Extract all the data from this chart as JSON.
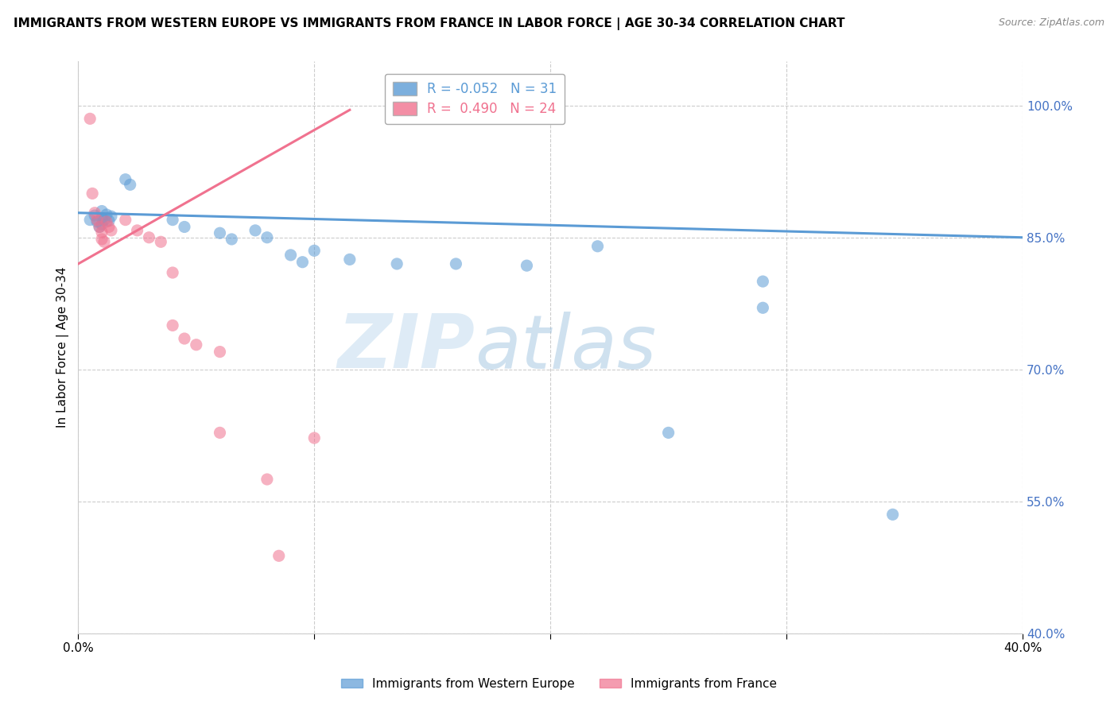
{
  "title": "IMMIGRANTS FROM WESTERN EUROPE VS IMMIGRANTS FROM FRANCE IN LABOR FORCE | AGE 30-34 CORRELATION CHART",
  "source": "Source: ZipAtlas.com",
  "ylabel": "In Labor Force | Age 30-34",
  "xlim": [
    0.0,
    0.4
  ],
  "ylim": [
    0.4,
    1.05
  ],
  "ytick_right_values": [
    1.0,
    0.85,
    0.7,
    0.55,
    0.4
  ],
  "xtick_values": [
    0.0,
    0.1,
    0.2,
    0.3,
    0.4
  ],
  "legend_labels": [
    "Immigrants from Western Europe",
    "Immigrants from France"
  ],
  "r_blue": -0.052,
  "n_blue": 31,
  "r_pink": 0.49,
  "n_pink": 24,
  "blue_color": "#5b9bd5",
  "pink_color": "#f0728f",
  "blue_scatter": [
    [
      0.005,
      0.87
    ],
    [
      0.007,
      0.875
    ],
    [
      0.008,
      0.868
    ],
    [
      0.009,
      0.862
    ],
    [
      0.01,
      0.88
    ],
    [
      0.01,
      0.872
    ],
    [
      0.01,
      0.865
    ],
    [
      0.011,
      0.87
    ],
    [
      0.012,
      0.876
    ],
    [
      0.013,
      0.869
    ],
    [
      0.014,
      0.874
    ],
    [
      0.02,
      0.916
    ],
    [
      0.022,
      0.91
    ],
    [
      0.04,
      0.87
    ],
    [
      0.045,
      0.862
    ],
    [
      0.06,
      0.855
    ],
    [
      0.065,
      0.848
    ],
    [
      0.075,
      0.858
    ],
    [
      0.08,
      0.85
    ],
    [
      0.09,
      0.83
    ],
    [
      0.095,
      0.822
    ],
    [
      0.1,
      0.835
    ],
    [
      0.115,
      0.825
    ],
    [
      0.135,
      0.82
    ],
    [
      0.16,
      0.82
    ],
    [
      0.19,
      0.818
    ],
    [
      0.22,
      0.84
    ],
    [
      0.25,
      0.628
    ],
    [
      0.29,
      0.8
    ],
    [
      0.345,
      0.535
    ],
    [
      0.29,
      0.77
    ]
  ],
  "pink_scatter": [
    [
      0.005,
      0.985
    ],
    [
      0.006,
      0.9
    ],
    [
      0.007,
      0.878
    ],
    [
      0.008,
      0.87
    ],
    [
      0.009,
      0.862
    ],
    [
      0.01,
      0.856
    ],
    [
      0.01,
      0.848
    ],
    [
      0.011,
      0.845
    ],
    [
      0.012,
      0.868
    ],
    [
      0.013,
      0.862
    ],
    [
      0.014,
      0.858
    ],
    [
      0.02,
      0.87
    ],
    [
      0.025,
      0.858
    ],
    [
      0.03,
      0.85
    ],
    [
      0.035,
      0.845
    ],
    [
      0.04,
      0.81
    ],
    [
      0.045,
      0.735
    ],
    [
      0.05,
      0.728
    ],
    [
      0.06,
      0.72
    ],
    [
      0.06,
      0.628
    ],
    [
      0.08,
      0.575
    ],
    [
      0.085,
      0.488
    ],
    [
      0.1,
      0.622
    ],
    [
      0.04,
      0.75
    ]
  ],
  "blue_line": [
    [
      0.0,
      0.878
    ],
    [
      0.4,
      0.85
    ]
  ],
  "pink_line": [
    [
      0.0,
      0.82
    ],
    [
      0.115,
      0.995
    ]
  ],
  "watermark_zip": "ZIP",
  "watermark_atlas": "atlas",
  "background_color": "#ffffff"
}
